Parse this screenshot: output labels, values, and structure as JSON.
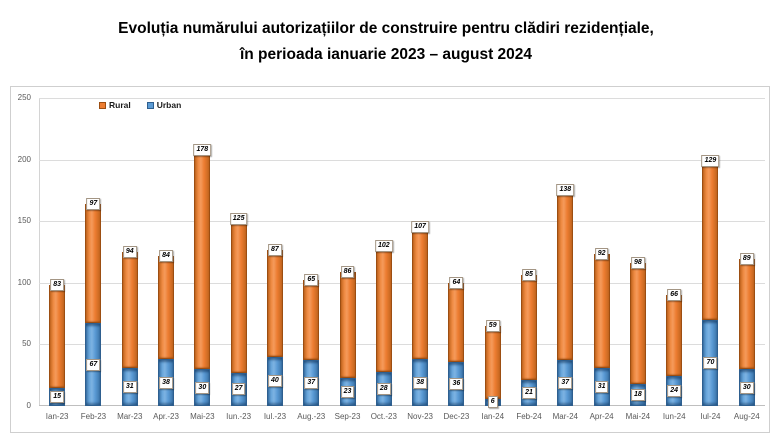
{
  "title": {
    "line1": "Evoluția numărului autorizațiilor de construire pentru clădiri rezidențiale,",
    "line2": "în perioada ianuarie 2023 – august 2024"
  },
  "legend": [
    {
      "label": "Rural",
      "color": "#ED7D31"
    },
    {
      "label": "Urban",
      "color": "#5B9BD5"
    }
  ],
  "chart_data": {
    "type": "bar",
    "stacked": true,
    "title": "Evoluția numărului autorizațiilor de construire pentru clădiri rezidențiale, în perioada ianuarie 2023 – august 2024",
    "categories": [
      "Ian-23",
      "Feb-23",
      "Mar-23",
      "Apr.-23",
      "Mai-23",
      "Iun.-23",
      "Iul.-23",
      "Aug.-23",
      "Sep-23",
      "Oct.-23",
      "Nov-23",
      "Dec-23",
      "Ian-24",
      "Feb-24",
      "Mar-24",
      "Apr-24",
      "Mai-24",
      "Iun-24",
      "Iul-24",
      "Aug-24"
    ],
    "series": [
      {
        "name": "Urban",
        "color": "#5B9BD5",
        "values": [
          15,
          67,
          31,
          38,
          30,
          27,
          40,
          37,
          23,
          28,
          38,
          36,
          6,
          21,
          37,
          31,
          18,
          24,
          70,
          30
        ]
      },
      {
        "name": "Rural",
        "color": "#ED7D31",
        "values": [
          83,
          97,
          94,
          84,
          178,
          125,
          87,
          65,
          86,
          102,
          107,
          64,
          59,
          85,
          138,
          92,
          98,
          66,
          129,
          89
        ]
      }
    ],
    "xlabel": "",
    "ylabel": "",
    "ylim": [
      0,
      250
    ],
    "yticks": [
      0,
      50,
      100,
      150,
      200,
      250
    ],
    "grid": true,
    "legend_position": "top-left",
    "data_labels": true
  }
}
